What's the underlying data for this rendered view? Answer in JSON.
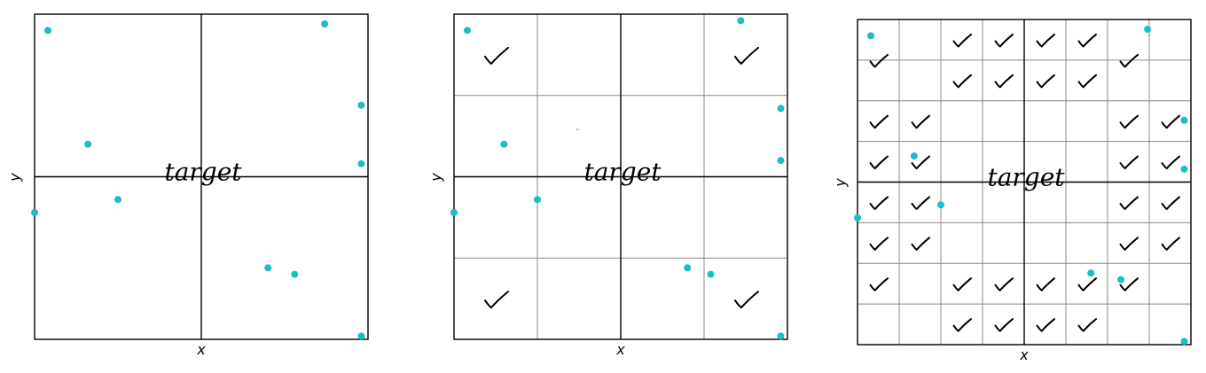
{
  "palette": {
    "point": "#1bbfc1",
    "frame": "#000000",
    "grid_major": "#000000",
    "grid_minor": "#888888",
    "mark": "#000000",
    "orange_dot": "#f5a623"
  },
  "panels": [
    {
      "x_label": "x",
      "y_label": "y",
      "target_label": "target",
      "grid_divisions": 2,
      "points": [
        [
          0.04,
          0.95
        ],
        [
          0.87,
          0.97
        ],
        [
          0.98,
          0.72
        ],
        [
          0.98,
          0.54
        ],
        [
          0.16,
          0.6
        ],
        [
          0.25,
          0.43
        ],
        [
          0.0,
          0.39
        ],
        [
          0.7,
          0.22
        ],
        [
          0.78,
          0.2
        ],
        [
          0.98,
          0.01
        ]
      ],
      "checks": []
    },
    {
      "x_label": "x",
      "y_label": "y",
      "target_label": "target",
      "grid_divisions": 4,
      "points": [
        [
          0.04,
          0.95
        ],
        [
          0.86,
          0.98
        ],
        [
          0.98,
          0.71
        ],
        [
          0.98,
          0.55
        ],
        [
          0.15,
          0.6
        ],
        [
          0.25,
          0.43
        ],
        [
          0.0,
          0.39
        ],
        [
          0.7,
          0.22
        ],
        [
          0.77,
          0.2
        ],
        [
          0.98,
          0.01
        ]
      ],
      "checks": [
        [
          0.125,
          0.875
        ],
        [
          0.875,
          0.875
        ],
        [
          0.125,
          0.125
        ],
        [
          0.875,
          0.125
        ]
      ]
    },
    {
      "x_label": "x",
      "y_label": "y",
      "target_label": "target",
      "grid_divisions": 8,
      "points": [
        [
          0.04,
          0.95
        ],
        [
          0.87,
          0.97
        ],
        [
          0.98,
          0.69
        ],
        [
          0.17,
          0.58
        ],
        [
          0.98,
          0.54
        ],
        [
          0.25,
          0.43
        ],
        [
          0.0,
          0.39
        ],
        [
          0.7,
          0.22
        ],
        [
          0.79,
          0.2
        ],
        [
          0.98,
          0.01
        ]
      ],
      "checks": [
        [
          0.0625,
          0.875
        ],
        [
          0.3125,
          0.9375
        ],
        [
          0.4375,
          0.9375
        ],
        [
          0.5625,
          0.9375
        ],
        [
          0.6875,
          0.9375
        ],
        [
          0.8125,
          0.875
        ],
        [
          0.3125,
          0.8125
        ],
        [
          0.4375,
          0.8125
        ],
        [
          0.5625,
          0.8125
        ],
        [
          0.6875,
          0.8125
        ],
        [
          0.0625,
          0.6875
        ],
        [
          0.1875,
          0.6875
        ],
        [
          0.8125,
          0.6875
        ],
        [
          0.9375,
          0.6875
        ],
        [
          0.0625,
          0.5625
        ],
        [
          0.1875,
          0.5625
        ],
        [
          0.8125,
          0.5625
        ],
        [
          0.9375,
          0.5625
        ],
        [
          0.0625,
          0.4375
        ],
        [
          0.1875,
          0.4375
        ],
        [
          0.8125,
          0.4375
        ],
        [
          0.9375,
          0.4375
        ],
        [
          0.0625,
          0.3125
        ],
        [
          0.1875,
          0.3125
        ],
        [
          0.8125,
          0.3125
        ],
        [
          0.9375,
          0.3125
        ],
        [
          0.0625,
          0.1875
        ],
        [
          0.3125,
          0.1875
        ],
        [
          0.4375,
          0.1875
        ],
        [
          0.5625,
          0.1875
        ],
        [
          0.6875,
          0.1875
        ],
        [
          0.8125,
          0.1875
        ],
        [
          0.3125,
          0.0625
        ],
        [
          0.4375,
          0.0625
        ],
        [
          0.5625,
          0.0625
        ],
        [
          0.6875,
          0.0625
        ]
      ]
    }
  ]
}
